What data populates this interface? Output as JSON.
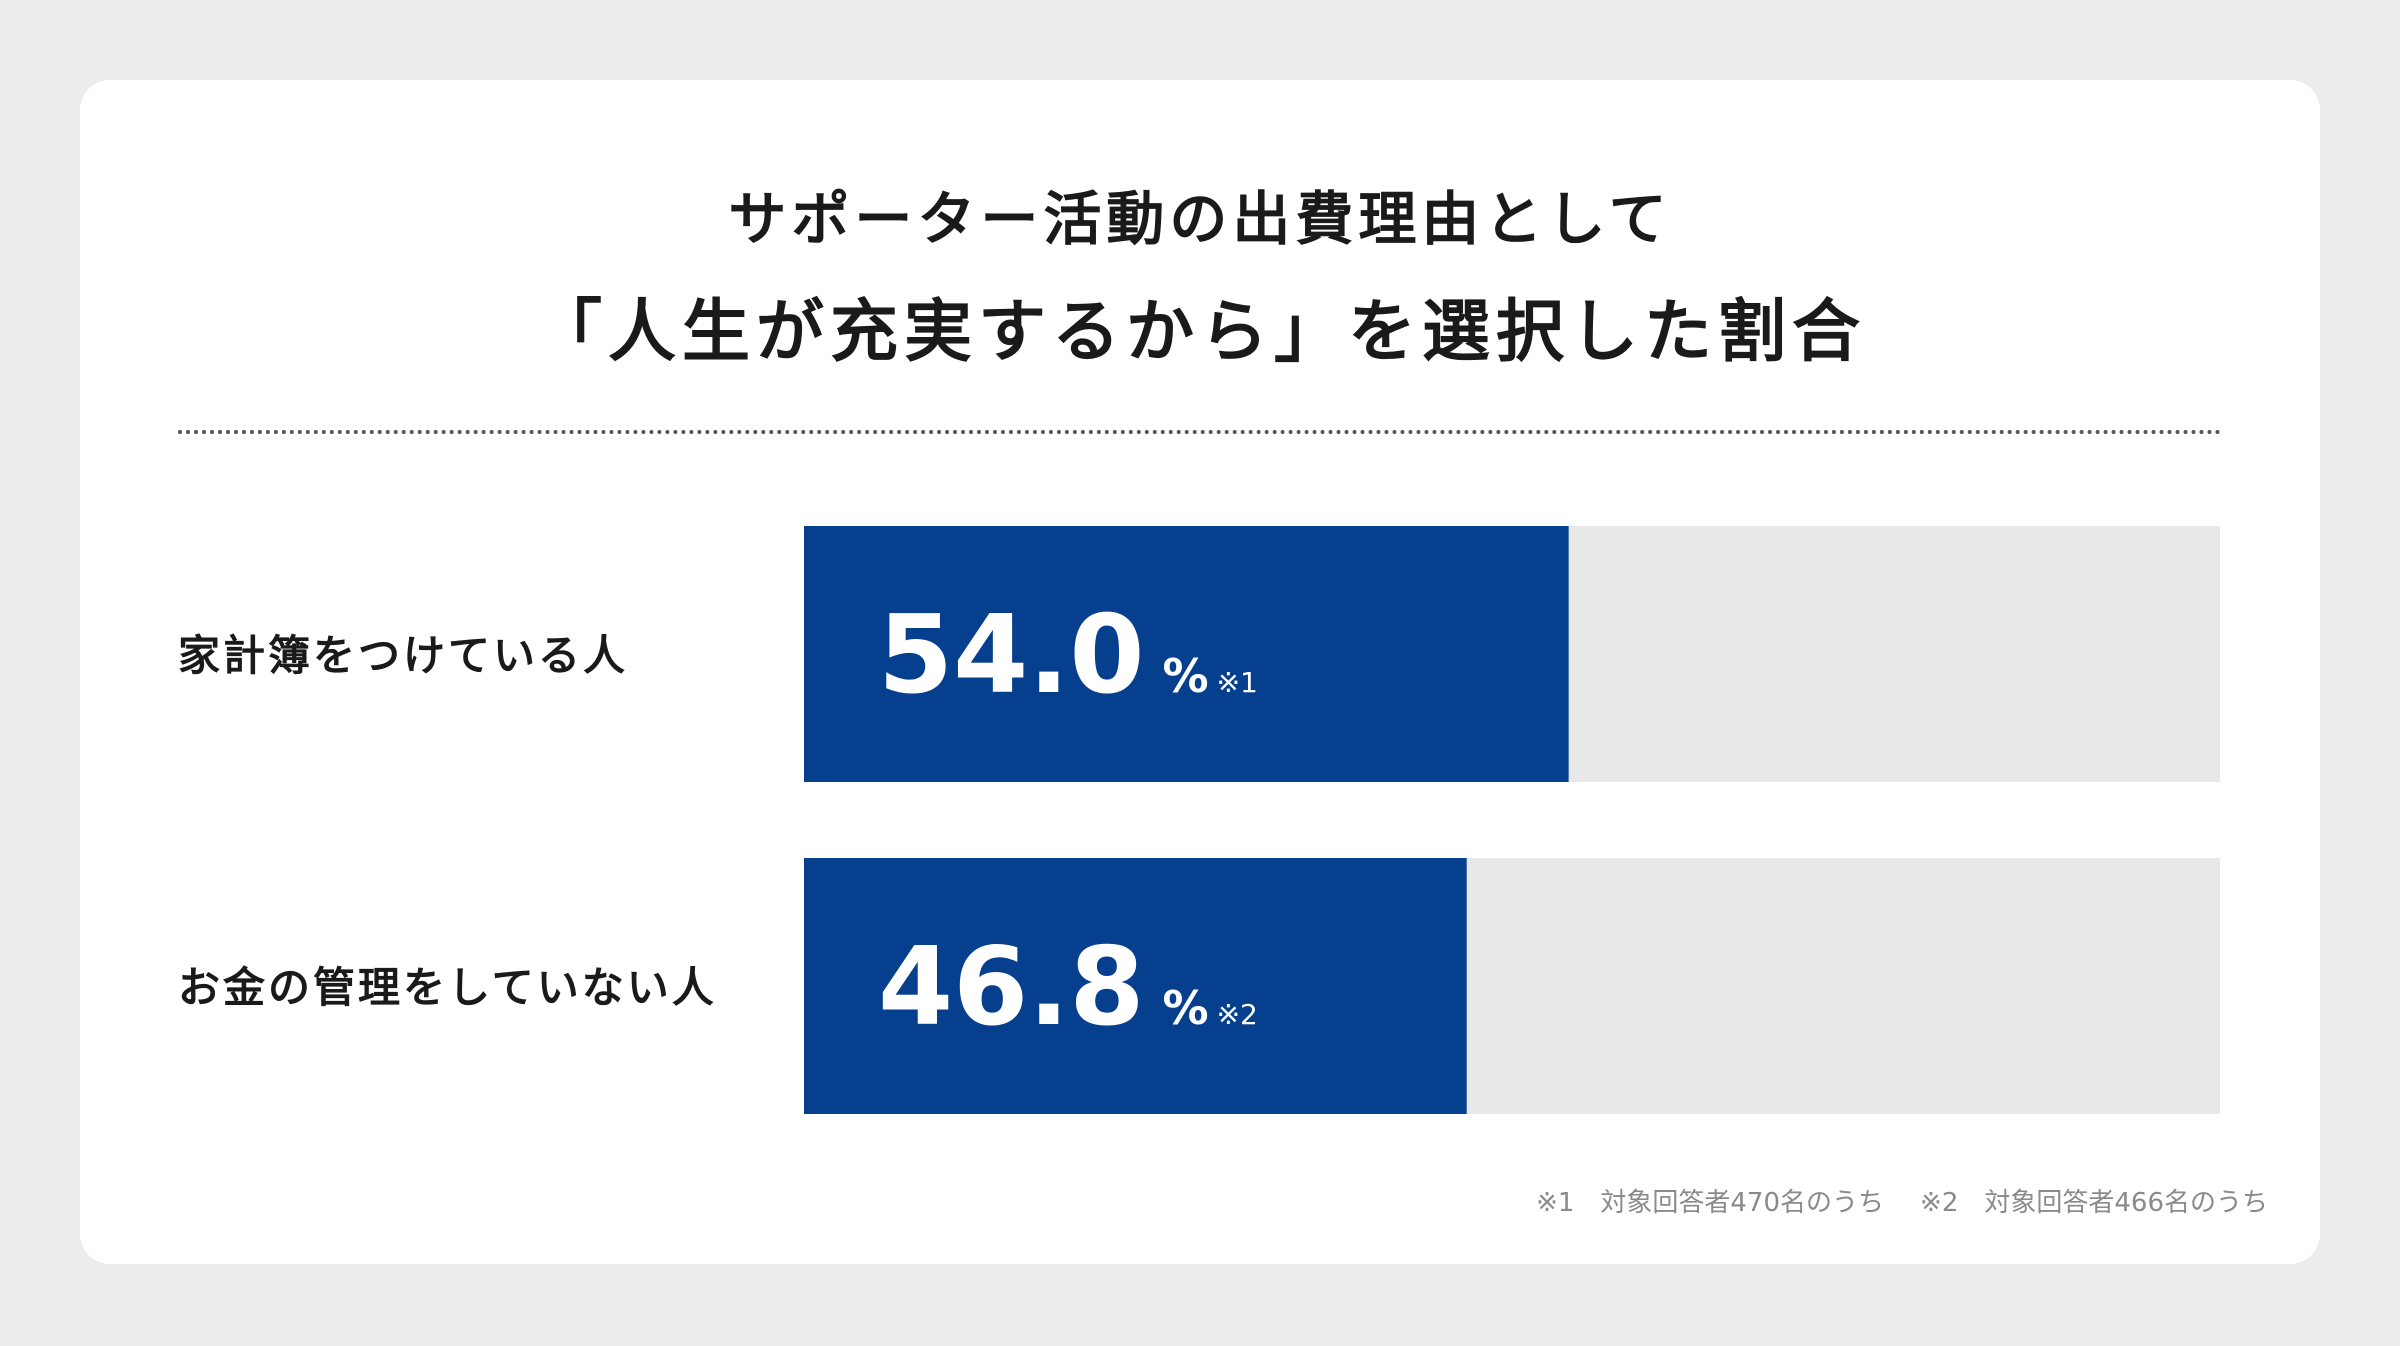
{
  "colors": {
    "bar": "#063f8e",
    "track": "#e8e8e8",
    "background": "#ececea",
    "card": "#ffffff"
  },
  "title": {
    "line1": "サポーター活動の出費理由として",
    "line2": "「人生が充実するから」を選択した割合"
  },
  "chart_data": {
    "type": "bar",
    "orientation": "horizontal",
    "categories": [
      "家計簿をつけている人",
      "お金の管理をしていない人"
    ],
    "values": [
      54.0,
      46.8
    ],
    "value_labels": [
      "54.0",
      "46.8"
    ],
    "unit": "%",
    "notes": [
      "※1",
      "※2"
    ],
    "xlim": [
      0,
      100
    ],
    "grid": false
  },
  "footnotes": [
    "※1　対象回答者470名のうち",
    "※2　対象回答者466名のうち"
  ]
}
